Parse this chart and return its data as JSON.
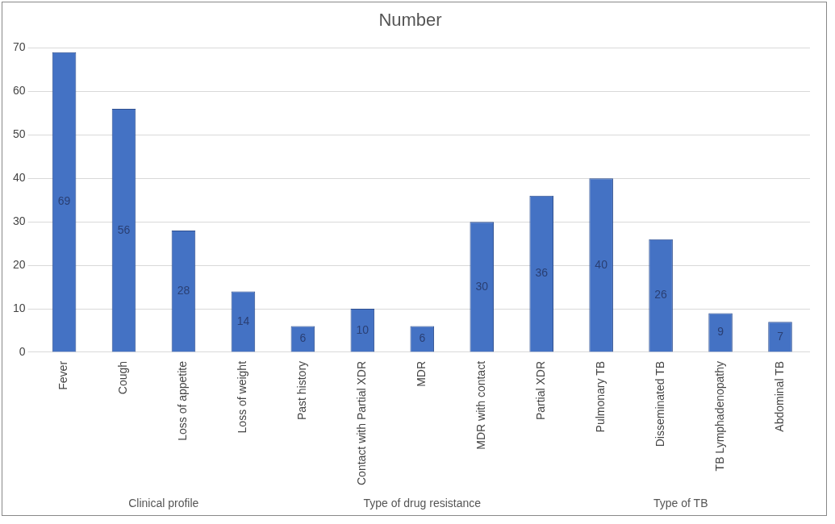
{
  "chart_data": {
    "type": "bar",
    "title": "Number",
    "categories": [
      "Fever",
      "Cough",
      "Loss of appetite",
      "Loss of weight",
      "Past history",
      "Contact with Partial XDR",
      "MDR",
      "MDR with contact",
      "Partial XDR",
      "Pulmonary TB",
      "Disseminated TB",
      "TB Lymphadenopathy",
      "Abdominal TB"
    ],
    "values": [
      69,
      56,
      28,
      14,
      6,
      10,
      6,
      30,
      36,
      40,
      26,
      9,
      7
    ],
    "color": "#4472c4",
    "ylim": [
      0,
      70
    ],
    "yticks": [
      0,
      10,
      20,
      30,
      40,
      50,
      60,
      70
    ],
    "grid": "y",
    "data_labels": true,
    "legend": false,
    "annotations": [
      "Clinical profile",
      "Type of drug resistance",
      "Type of TB"
    ]
  }
}
